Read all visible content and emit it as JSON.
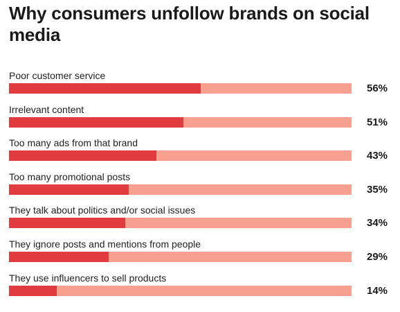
{
  "chart_data": {
    "type": "bar",
    "orientation": "horizontal",
    "title": "Why consumers unfollow brands on social media",
    "categories": [
      "Poor customer service",
      "Irrelevant content",
      "Too many ads from that brand",
      "Too many promotional posts",
      "They talk about politics and/or social issues",
      "They ignore posts and mentions from people",
      "They use influencers to sell products"
    ],
    "values": [
      56,
      51,
      43,
      35,
      34,
      29,
      14
    ],
    "value_labels": [
      "56%",
      "51%",
      "43%",
      "35%",
      "34%",
      "29%",
      "14%"
    ],
    "xlim": [
      0,
      100
    ],
    "grid": false,
    "legend": "none",
    "colors": {
      "fill": "#e03b3f",
      "track": "#f7a08f",
      "text": "#1a1a1a"
    }
  }
}
